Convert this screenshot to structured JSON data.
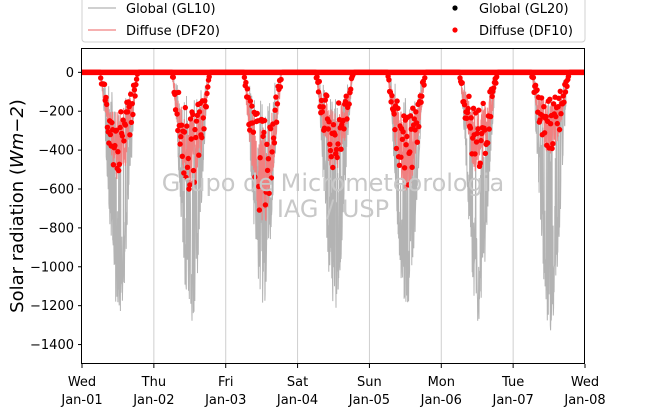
{
  "chart_data": {
    "type": "line",
    "ylabel": "Solar radiation (Wm−2)",
    "ylabel_main": "Solar radiation (",
    "ylabel_unit": "Wm",
    "ylabel_exp": "−2",
    "ylabel_close": ")",
    "ylim": [
      -1500,
      120
    ],
    "yticks": [
      0,
      -200,
      -400,
      -600,
      -800,
      -1000,
      -1200,
      -1400
    ],
    "ytick_labels": [
      "0",
      "−200",
      "−400",
      "−600",
      "−800",
      "−1000",
      "−1200",
      "−1400"
    ],
    "xlim": [
      "2014-01-01",
      "2014-01-08"
    ],
    "xticks": [
      {
        "day": "Wed",
        "date": "Jan-01"
      },
      {
        "day": "Thu",
        "date": "Jan-02"
      },
      {
        "day": "Fri",
        "date": "Jan-03"
      },
      {
        "day": "Sat",
        "date": "Jan-04"
      },
      {
        "day": "Sun",
        "date": "Jan-05"
      },
      {
        "day": "Mon",
        "date": "Jan-06"
      },
      {
        "day": "Tue",
        "date": "Jan-07"
      },
      {
        "day": "Wed",
        "date": "Jan-08"
      }
    ],
    "grid": "vertical",
    "legend_placement": "top (above plot)",
    "watermark": [
      "Grupo de Micrometeorologia",
      "IAG / USP"
    ],
    "series": [
      {
        "name": "Global (GL10)",
        "style": "line",
        "color": "#b3b3b3",
        "daily_min": [
          -1270,
          -1325,
          -1225,
          -1240,
          -1250,
          -1280,
          -1330
        ]
      },
      {
        "name": "Diffuse (DF20)",
        "style": "line",
        "color": "#f08080",
        "daily_min": [
          -560,
          -640,
          -790,
          -530,
          -620,
          -540,
          -440
        ]
      },
      {
        "name": "Global (GL20)",
        "style": "points",
        "color": "#000000"
      },
      {
        "name": "Diffuse (DF10)",
        "style": "points",
        "color": "#ff0000",
        "daily_min": [
          -540,
          -635,
          -780,
          -500,
          -600,
          -510,
          -420
        ]
      }
    ]
  }
}
